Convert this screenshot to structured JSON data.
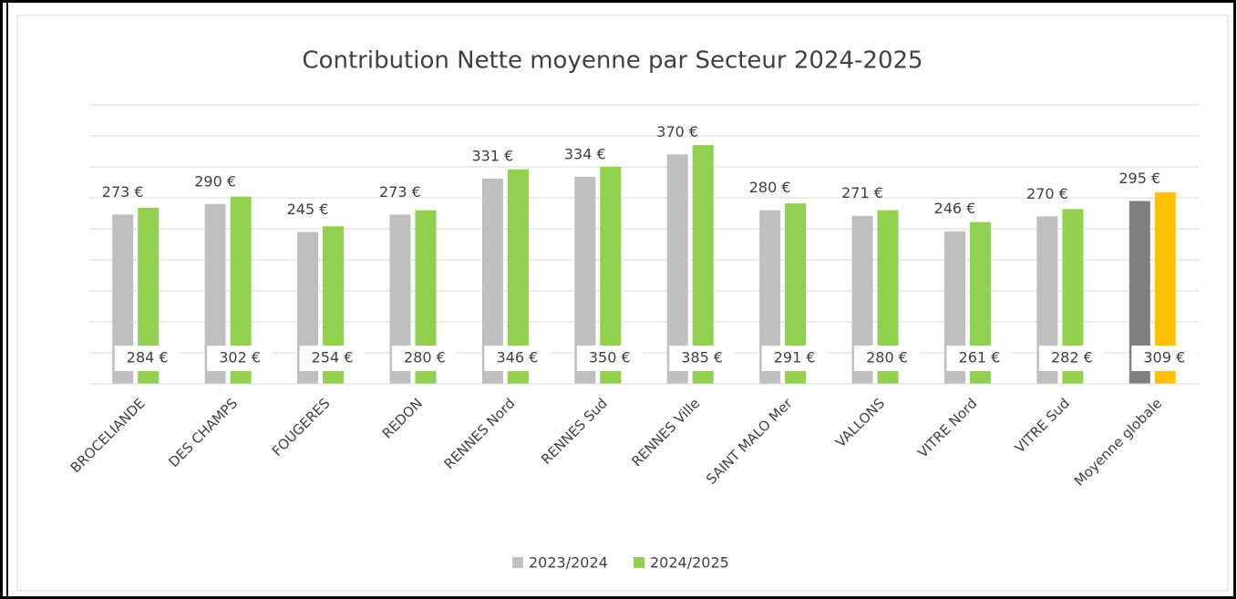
{
  "chart_data": {
    "type": "bar",
    "title": "Contribution Nette moyenne par Secteur 2024-2025",
    "categories": [
      "BROCELIANDE",
      "DES CHAMPS",
      "FOUGERES",
      "REDON",
      "RENNES Nord",
      "RENNES Sud",
      "RENNES Ville",
      "SAINT MALO Mer",
      "VALLONS",
      "VITRE Nord",
      "VITRE Sud",
      "Moyenne globale"
    ],
    "series": [
      {
        "name": "2023/2024",
        "color": "#bfbfbf",
        "colors": [
          "#bfbfbf",
          "#bfbfbf",
          "#bfbfbf",
          "#bfbfbf",
          "#bfbfbf",
          "#bfbfbf",
          "#bfbfbf",
          "#bfbfbf",
          "#bfbfbf",
          "#bfbfbf",
          "#bfbfbf",
          "#7f7f7f"
        ],
        "values": [
          273,
          290,
          245,
          273,
          331,
          334,
          370,
          280,
          271,
          246,
          270,
          295
        ],
        "value_labels": [
          "273 €",
          "290 €",
          "245 €",
          "273 €",
          "331 €",
          "334 €",
          "370 €",
          "280 €",
          "271 €",
          "246 €",
          "270 €",
          "295 €"
        ]
      },
      {
        "name": "2024/2025",
        "color": "#92d050",
        "colors": [
          "#92d050",
          "#92d050",
          "#92d050",
          "#92d050",
          "#92d050",
          "#92d050",
          "#92d050",
          "#92d050",
          "#92d050",
          "#92d050",
          "#92d050",
          "#ffc000"
        ],
        "values": [
          284,
          302,
          254,
          280,
          346,
          350,
          385,
          291,
          280,
          261,
          282,
          309
        ],
        "value_labels": [
          "284 €",
          "302 €",
          "254 €",
          "280 €",
          "346 €",
          "350 €",
          "385 €",
          "291 €",
          "280 €",
          "261 €",
          "282 €",
          "309 €"
        ]
      }
    ],
    "ylim": [
      0,
      450
    ],
    "yticks": [
      0,
      50,
      100,
      150,
      200,
      250,
      300,
      350,
      400,
      450
    ],
    "grid": true,
    "legend": "bottom"
  }
}
